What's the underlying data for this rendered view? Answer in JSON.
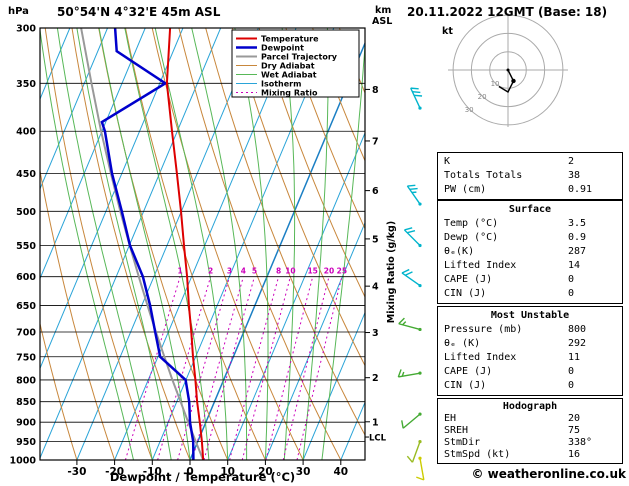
{
  "header": {
    "station_title": "50°54'N 4°32'E 45m ASL",
    "datetime": "20.11.2022 12GMT (Base: 18)"
  },
  "footer": {
    "copyright": "© weatheronline.co.uk"
  },
  "chart_data": {
    "type": "skewt_log_p_sounding",
    "pressure_axis": {
      "label": "hPa",
      "ticks": [
        300,
        350,
        400,
        450,
        500,
        550,
        600,
        650,
        700,
        750,
        800,
        850,
        900,
        950,
        1000
      ],
      "range": [
        300,
        1000
      ]
    },
    "temp_axis": {
      "label": "Dewpoint / Temperature (°C)",
      "ticks": [
        -30,
        -20,
        -10,
        0,
        10,
        20,
        30,
        40
      ]
    },
    "km_axis": {
      "label_lines": [
        "km",
        "ASL"
      ],
      "ticks": [
        {
          "km": 8,
          "hpa": 356
        },
        {
          "km": 7,
          "hpa": 411
        },
        {
          "km": 6,
          "hpa": 472
        },
        {
          "km": 5,
          "hpa": 540
        },
        {
          "km": 4,
          "hpa": 616
        },
        {
          "km": 3,
          "hpa": 701
        },
        {
          "km": 2,
          "hpa": 795
        },
        {
          "km": 1,
          "hpa": 899
        }
      ],
      "lcl": {
        "label": "LCL",
        "hpa": 938
      }
    },
    "mixing_ratio_axis": {
      "label": "Mixing Ratio (g/kg)",
      "lines_g_per_kg": [
        1,
        2,
        3,
        4,
        5,
        8,
        10,
        15,
        20,
        25
      ]
    },
    "legend": [
      {
        "label": "Temperature",
        "color": "#dd0000",
        "width": 2,
        "dash": ""
      },
      {
        "label": "Dewpoint",
        "color": "#0000cc",
        "width": 2.5,
        "dash": ""
      },
      {
        "label": "Parcel Trajectory",
        "color": "#999999",
        "width": 2,
        "dash": ""
      },
      {
        "label": "Dry Adiabat",
        "color": "#c8873c",
        "width": 1,
        "dash": ""
      },
      {
        "label": "Wet Adiabat",
        "color": "#58b858",
        "width": 1,
        "dash": ""
      },
      {
        "label": "Isotherm",
        "color": "#2aa4d8",
        "width": 1,
        "dash": ""
      },
      {
        "label": "Mixing Ratio",
        "color": "#cc00bb",
        "width": 1,
        "dash": "2,3"
      }
    ],
    "series": {
      "temperature_p_c": [
        [
          1000,
          3.5
        ],
        [
          950,
          1.1
        ],
        [
          900,
          -1.6
        ],
        [
          850,
          -4.6
        ],
        [
          800,
          -7.5
        ],
        [
          750,
          -10.7
        ],
        [
          700,
          -13.9
        ],
        [
          650,
          -17.5
        ],
        [
          600,
          -21.2
        ],
        [
          550,
          -25.5
        ],
        [
          500,
          -30.1
        ],
        [
          450,
          -35.4
        ],
        [
          400,
          -41.4
        ],
        [
          350,
          -48.1
        ],
        [
          300,
          -53.4
        ]
      ],
      "dewpoint_p_c": [
        [
          1000,
          0.9
        ],
        [
          950,
          -1.2
        ],
        [
          900,
          -4.2
        ],
        [
          850,
          -6.7
        ],
        [
          800,
          -10.1
        ],
        [
          750,
          -19.4
        ],
        [
          700,
          -23.5
        ],
        [
          650,
          -27.8
        ],
        [
          600,
          -32.9
        ],
        [
          550,
          -39.8
        ],
        [
          500,
          -45.8
        ],
        [
          450,
          -52.6
        ],
        [
          400,
          -59.2
        ],
        [
          390,
          -61
        ],
        [
          350,
          -48.5
        ],
        [
          320,
          -65
        ],
        [
          300,
          -68
        ]
      ],
      "parcel_p_c": [
        [
          1000,
          3.5
        ],
        [
          950,
          -0.5
        ],
        [
          900,
          -4.7
        ],
        [
          850,
          -9.0
        ],
        [
          800,
          -13.6
        ],
        [
          750,
          -18.3
        ],
        [
          700,
          -23.3
        ],
        [
          650,
          -28.5
        ],
        [
          600,
          -34.0
        ],
        [
          550,
          -39.9
        ],
        [
          500,
          -46.2
        ],
        [
          450,
          -52.9
        ],
        [
          400,
          -60.2
        ],
        [
          350,
          -68.1
        ],
        [
          300,
          -77.0
        ]
      ]
    },
    "isotherms_c": {
      "min": -100,
      "max": 40,
      "step": 10
    },
    "dry_adiabats_theta_c": {
      "min": -40,
      "max": 110,
      "step": 10
    },
    "wet_adiabats_thetaw_c": {
      "min": -15,
      "max": 35,
      "step": 5
    },
    "wind_barbs": [
      {
        "hpa": 375,
        "dir": 335,
        "kt": 30,
        "color": "#00b4cc"
      },
      {
        "hpa": 490,
        "dir": 325,
        "kt": 25,
        "color": "#00b4cc"
      },
      {
        "hpa": 550,
        "dir": 315,
        "kt": 20,
        "color": "#00b4cc"
      },
      {
        "hpa": 615,
        "dir": 305,
        "kt": 20,
        "color": "#00b4cc"
      },
      {
        "hpa": 695,
        "dir": 285,
        "kt": 15,
        "color": "#44aa33"
      },
      {
        "hpa": 785,
        "dir": 260,
        "kt": 15,
        "color": "#44aa33"
      },
      {
        "hpa": 880,
        "dir": 230,
        "kt": 10,
        "color": "#44aa33"
      },
      {
        "hpa": 950,
        "dir": 200,
        "kt": 10,
        "color": "#99bb22"
      },
      {
        "hpa": 995,
        "dir": 170,
        "kt": 10,
        "color": "#cccc00"
      }
    ],
    "hodograph": {
      "unit_label": "kt",
      "rings_kt": [
        10,
        20,
        30
      ],
      "ring_labels": [
        "10",
        "20",
        "30"
      ],
      "trace_kt": [
        [
          0,
          0
        ],
        [
          3,
          -6
        ],
        [
          0,
          -12
        ],
        [
          -5,
          -9
        ]
      ],
      "dot_index": 1
    }
  },
  "panel": {
    "indices": {
      "rows": [
        [
          "K",
          "2"
        ],
        [
          "Totals Totals",
          "38"
        ],
        [
          "PW (cm)",
          "0.91"
        ]
      ]
    },
    "surface": {
      "title": "Surface",
      "rows": [
        [
          "Temp (°C)",
          "3.5"
        ],
        [
          "Dewp (°C)",
          "0.9"
        ],
        [
          "θₑ(K)",
          "287"
        ],
        [
          "Lifted Index",
          "14"
        ],
        [
          "CAPE (J)",
          "0"
        ],
        [
          "CIN (J)",
          "0"
        ]
      ]
    },
    "most_unstable": {
      "title": "Most Unstable",
      "rows": [
        [
          "Pressure (mb)",
          "800"
        ],
        [
          "θₑ (K)",
          "292"
        ],
        [
          "Lifted Index",
          "11"
        ],
        [
          "CAPE (J)",
          "0"
        ],
        [
          "CIN (J)",
          "0"
        ]
      ]
    },
    "hodograph_stats": {
      "title": "Hodograph",
      "rows": [
        [
          "EH",
          "20"
        ],
        [
          "SREH",
          "75"
        ],
        [
          "StmDir",
          "338°"
        ],
        [
          "StmSpd (kt)",
          "16"
        ]
      ]
    }
  }
}
